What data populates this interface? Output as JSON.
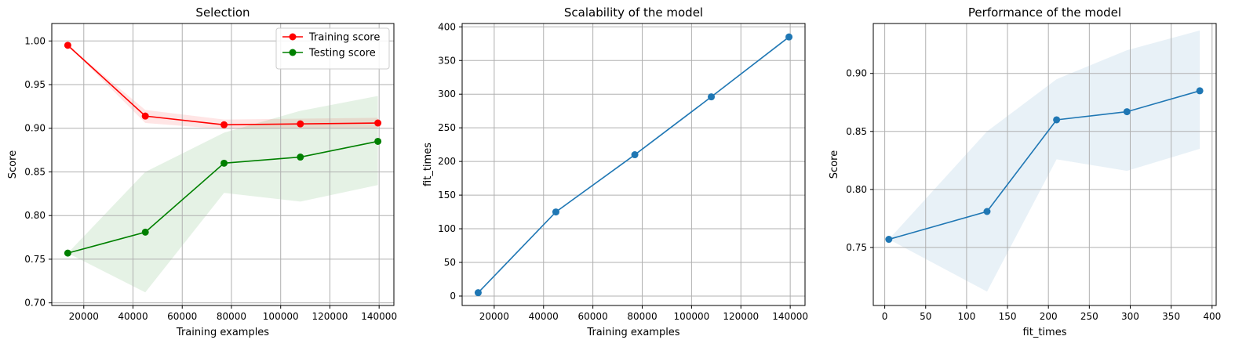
{
  "chart_data": [
    {
      "type": "line",
      "title": "Selection",
      "xlabel": "Training examples",
      "ylabel": "Score",
      "grid": true,
      "legend_position": "top-right",
      "xlim": [
        7000,
        146000
      ],
      "ylim": [
        0.697,
        1.02
      ],
      "xticks": [
        20000,
        40000,
        60000,
        80000,
        100000,
        120000,
        140000
      ],
      "yticks": [
        0.7,
        0.75,
        0.8,
        0.85,
        0.9,
        0.95,
        1.0
      ],
      "yticks_decimals": 2,
      "x": [
        13500,
        45000,
        77000,
        108000,
        139500
      ],
      "series": [
        {
          "name": "Training score",
          "color": "#ff0000",
          "marker": "circle",
          "values": [
            0.995,
            0.914,
            0.904,
            0.905,
            0.906
          ],
          "band_lower": [
            0.995,
            0.906,
            0.899,
            0.9,
            0.9
          ],
          "band_upper": [
            0.995,
            0.921,
            0.91,
            0.911,
            0.912
          ]
        },
        {
          "name": "Testing score",
          "color": "#008000",
          "marker": "circle",
          "values": [
            0.757,
            0.781,
            0.86,
            0.867,
            0.885
          ],
          "band_lower": [
            0.757,
            0.712,
            0.826,
            0.816,
            0.835
          ],
          "band_upper": [
            0.757,
            0.85,
            0.895,
            0.92,
            0.937
          ]
        }
      ]
    },
    {
      "type": "line",
      "title": "Scalability of the model",
      "xlabel": "Training examples",
      "ylabel": "fit_times",
      "grid": true,
      "xlim": [
        7000,
        146000
      ],
      "ylim": [
        -14,
        405
      ],
      "xticks": [
        20000,
        40000,
        60000,
        80000,
        100000,
        120000,
        140000
      ],
      "yticks": [
        0,
        50,
        100,
        150,
        200,
        250,
        300,
        350,
        400
      ],
      "yticks_decimals": 0,
      "x": [
        13500,
        45000,
        77000,
        108000,
        139500
      ],
      "series": [
        {
          "color": "#1f77b4",
          "marker": "circle",
          "values": [
            5,
            125,
            210,
            296,
            385
          ]
        }
      ]
    },
    {
      "type": "line",
      "title": "Performance of the model",
      "xlabel": "fit_times",
      "ylabel": "Score",
      "grid": true,
      "xlim": [
        -14,
        405
      ],
      "ylim": [
        0.7,
        0.943
      ],
      "xticks": [
        0,
        50,
        100,
        150,
        200,
        250,
        300,
        350,
        400
      ],
      "yticks": [
        0.75,
        0.8,
        0.85,
        0.9
      ],
      "yticks_decimals": 2,
      "x": [
        5,
        125,
        210,
        296,
        385
      ],
      "series": [
        {
          "color": "#1f77b4",
          "marker": "circle",
          "values": [
            0.757,
            0.781,
            0.86,
            0.867,
            0.885
          ],
          "band_lower": [
            0.757,
            0.712,
            0.826,
            0.816,
            0.835
          ],
          "band_upper": [
            0.757,
            0.85,
            0.895,
            0.92,
            0.937
          ]
        }
      ]
    }
  ]
}
